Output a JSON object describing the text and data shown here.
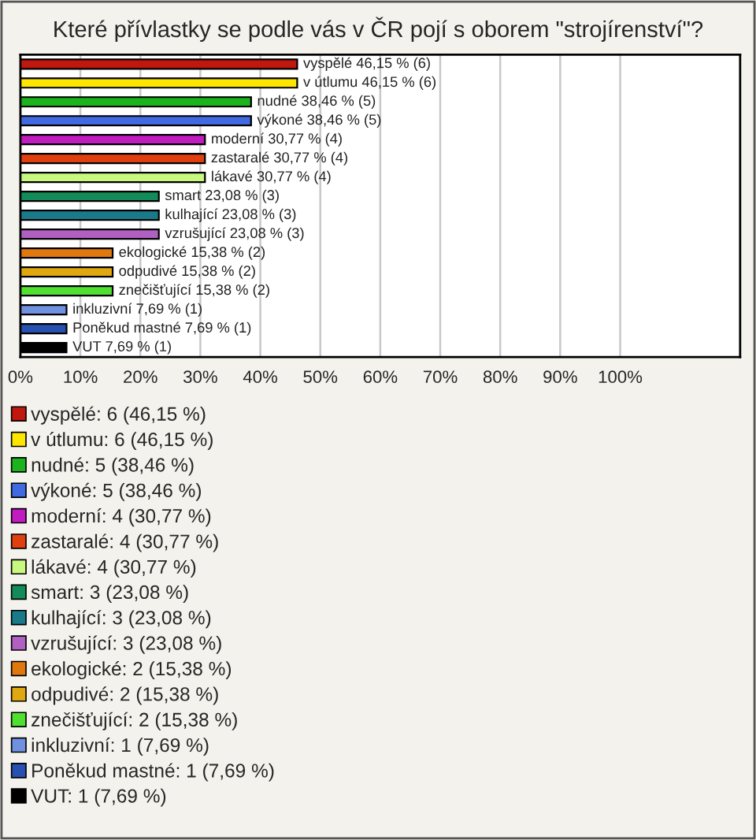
{
  "chart_data": {
    "type": "bar",
    "orientation": "horizontal",
    "title": "Které přívlastky se podle vás v ČR pojí s oborem \"strojírenství\"?",
    "categories": [
      null,
      null,
      null,
      null,
      null,
      null,
      null,
      null,
      null,
      null,
      null,
      null,
      null,
      null,
      null,
      null
    ],
    "series": [
      {
        "name": "vyspělé: 6 (46,15 %)",
        "color": "#c0170f",
        "values": [
          46.15,
          null,
          null,
          null,
          null,
          null,
          null,
          null,
          null,
          null,
          null,
          null,
          null,
          null,
          null,
          null
        ],
        "value_labels": [
          "vyspělé 46,15 % (6)",
          null,
          null,
          null,
          null,
          null,
          null,
          null,
          null,
          null,
          null,
          null,
          null,
          null,
          null,
          null
        ]
      },
      {
        "name": "v útlumu: 6 (46,15 %)",
        "color": "#ffe600",
        "values": [
          null,
          46.15,
          null,
          null,
          null,
          null,
          null,
          null,
          null,
          null,
          null,
          null,
          null,
          null,
          null,
          null
        ],
        "value_labels": [
          null,
          "v útlumu 46,15 % (6)",
          null,
          null,
          null,
          null,
          null,
          null,
          null,
          null,
          null,
          null,
          null,
          null,
          null,
          null
        ]
      },
      {
        "name": "nudné: 5 (38,46 %)",
        "color": "#1db31d",
        "values": [
          null,
          null,
          38.46,
          null,
          null,
          null,
          null,
          null,
          null,
          null,
          null,
          null,
          null,
          null,
          null,
          null
        ],
        "value_labels": [
          null,
          null,
          "nudné 38,46 % (5)",
          null,
          null,
          null,
          null,
          null,
          null,
          null,
          null,
          null,
          null,
          null,
          null,
          null
        ]
      },
      {
        "name": "výkoné: 5 (38,46 %)",
        "color": "#4169e1",
        "values": [
          null,
          null,
          null,
          38.46,
          null,
          null,
          null,
          null,
          null,
          null,
          null,
          null,
          null,
          null,
          null,
          null
        ],
        "value_labels": [
          null,
          null,
          null,
          "výkoné 38,46 % (5)",
          null,
          null,
          null,
          null,
          null,
          null,
          null,
          null,
          null,
          null,
          null,
          null
        ]
      },
      {
        "name": "moderní: 4 (30,77 %)",
        "color": "#c01cc0",
        "values": [
          null,
          null,
          null,
          null,
          30.77,
          null,
          null,
          null,
          null,
          null,
          null,
          null,
          null,
          null,
          null,
          null
        ],
        "value_labels": [
          null,
          null,
          null,
          null,
          "moderní 30,77 % (4)",
          null,
          null,
          null,
          null,
          null,
          null,
          null,
          null,
          null,
          null,
          null
        ]
      },
      {
        "name": "zastaralé: 4 (30,77 %)",
        "color": "#e04010",
        "values": [
          null,
          null,
          null,
          null,
          null,
          30.77,
          null,
          null,
          null,
          null,
          null,
          null,
          null,
          null,
          null,
          null
        ],
        "value_labels": [
          null,
          null,
          null,
          null,
          null,
          "zastaralé 30,77 % (4)",
          null,
          null,
          null,
          null,
          null,
          null,
          null,
          null,
          null,
          null
        ]
      },
      {
        "name": "lákavé: 4 (30,77 %)",
        "color": "#c8f880",
        "values": [
          null,
          null,
          null,
          null,
          null,
          null,
          30.77,
          null,
          null,
          null,
          null,
          null,
          null,
          null,
          null,
          null
        ],
        "value_labels": [
          null,
          null,
          null,
          null,
          null,
          null,
          "lákavé 30,77 % (4)",
          null,
          null,
          null,
          null,
          null,
          null,
          null,
          null,
          null
        ]
      },
      {
        "name": "smart: 3 (23,08 %)",
        "color": "#148c5a",
        "values": [
          null,
          null,
          null,
          null,
          null,
          null,
          null,
          23.08,
          null,
          null,
          null,
          null,
          null,
          null,
          null,
          null
        ],
        "value_labels": [
          null,
          null,
          null,
          null,
          null,
          null,
          null,
          "smart 23,08 % (3)",
          null,
          null,
          null,
          null,
          null,
          null,
          null,
          null
        ]
      },
      {
        "name": "kulhající: 3 (23,08 %)",
        "color": "#1a7a8a",
        "values": [
          null,
          null,
          null,
          null,
          null,
          null,
          null,
          null,
          23.08,
          null,
          null,
          null,
          null,
          null,
          null,
          null
        ],
        "value_labels": [
          null,
          null,
          null,
          null,
          null,
          null,
          null,
          null,
          "kulhající 23,08 % (3)",
          null,
          null,
          null,
          null,
          null,
          null,
          null
        ]
      },
      {
        "name": "vzrušující: 3 (23,08 %)",
        "color": "#b060c0",
        "values": [
          null,
          null,
          null,
          null,
          null,
          null,
          null,
          null,
          null,
          23.08,
          null,
          null,
          null,
          null,
          null,
          null
        ],
        "value_labels": [
          null,
          null,
          null,
          null,
          null,
          null,
          null,
          null,
          null,
          "vzrušující 23,08 % (3)",
          null,
          null,
          null,
          null,
          null,
          null
        ]
      },
      {
        "name": "ekologické: 2 (15,38 %)",
        "color": "#e07810",
        "values": [
          null,
          null,
          null,
          null,
          null,
          null,
          null,
          null,
          null,
          null,
          15.38,
          null,
          null,
          null,
          null,
          null
        ],
        "value_labels": [
          null,
          null,
          null,
          null,
          null,
          null,
          null,
          null,
          null,
          null,
          "ekologické 15,38 % (2)",
          null,
          null,
          null,
          null,
          null
        ]
      },
      {
        "name": "odpudivé: 2 (15,38 %)",
        "color": "#e0a810",
        "values": [
          null,
          null,
          null,
          null,
          null,
          null,
          null,
          null,
          null,
          null,
          null,
          15.38,
          null,
          null,
          null,
          null
        ],
        "value_labels": [
          null,
          null,
          null,
          null,
          null,
          null,
          null,
          null,
          null,
          null,
          null,
          "odpudivé 15,38 % (2)",
          null,
          null,
          null,
          null
        ]
      },
      {
        "name": "znečišťující: 2 (15,38 %)",
        "color": "#50e030",
        "values": [
          null,
          null,
          null,
          null,
          null,
          null,
          null,
          null,
          null,
          null,
          null,
          null,
          15.38,
          null,
          null,
          null
        ],
        "value_labels": [
          null,
          null,
          null,
          null,
          null,
          null,
          null,
          null,
          null,
          null,
          null,
          null,
          "znečišťující 15,38 % (2)",
          null,
          null,
          null
        ]
      },
      {
        "name": "inkluzivní: 1 (7,69 %)",
        "color": "#7090e0",
        "values": [
          null,
          null,
          null,
          null,
          null,
          null,
          null,
          null,
          null,
          null,
          null,
          null,
          null,
          7.69,
          null,
          null
        ],
        "value_labels": [
          null,
          null,
          null,
          null,
          null,
          null,
          null,
          null,
          null,
          null,
          null,
          null,
          null,
          "inkluzivní 7,69 % (1)",
          null,
          null
        ]
      },
      {
        "name": "Poněkud mastné: 1 (7,69 %)",
        "color": "#2850b0",
        "values": [
          null,
          null,
          null,
          null,
          null,
          null,
          null,
          null,
          null,
          null,
          null,
          null,
          null,
          null,
          7.69,
          null
        ],
        "value_labels": [
          null,
          null,
          null,
          null,
          null,
          null,
          null,
          null,
          null,
          null,
          null,
          null,
          null,
          null,
          "Poněkud mastné 7,69 % (1)",
          null
        ]
      },
      {
        "name": "VUT: 1 (7,69 %)",
        "color": "#000000",
        "values": [
          null,
          null,
          null,
          null,
          null,
          null,
          null,
          null,
          null,
          null,
          null,
          null,
          null,
          null,
          null,
          7.69
        ],
        "value_labels": [
          null,
          null,
          null,
          null,
          null,
          null,
          null,
          null,
          null,
          null,
          null,
          null,
          null,
          null,
          null,
          "VUT 7,69 % (1)"
        ]
      }
    ],
    "xlim": [
      0,
      120
    ],
    "xticks": [
      {
        "value": 0,
        "label": "0%"
      },
      {
        "value": 10,
        "label": "10%"
      },
      {
        "value": 20,
        "label": "20%"
      },
      {
        "value": 30,
        "label": "30%"
      },
      {
        "value": 40,
        "label": "40%"
      },
      {
        "value": 50,
        "label": "50%"
      },
      {
        "value": 60,
        "label": "60%"
      },
      {
        "value": 70,
        "label": "70%"
      },
      {
        "value": 80,
        "label": "80%"
      },
      {
        "value": 90,
        "label": "90%"
      },
      {
        "value": 100,
        "label": "100%"
      }
    ],
    "grid": "x",
    "legend": "bottom",
    "tick_labels": "x"
  }
}
